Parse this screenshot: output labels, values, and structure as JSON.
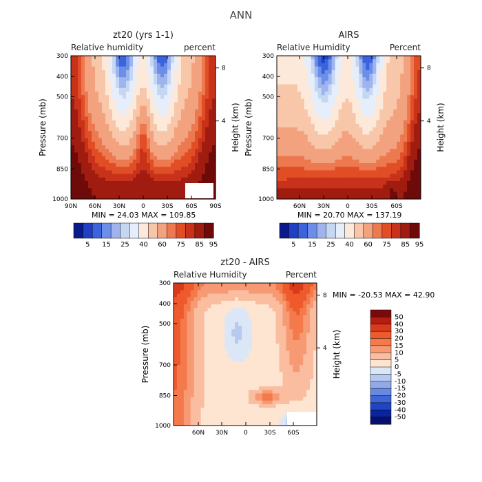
{
  "figure_title": "ANN",
  "chart_data": [
    {
      "type": "heatmap",
      "title": "zt20 (yrs 1-1)",
      "left_label": "Relative humidity",
      "right_label": "percent",
      "xlabel": "",
      "ylabel": "Pressure (mb)",
      "y2label": "Height (km)",
      "x_ticks": [
        "90N",
        "60N",
        "30N",
        "0",
        "30S",
        "60S",
        "90S"
      ],
      "y_ticks": [
        "300",
        "400",
        "500",
        "700",
        "850",
        "1000"
      ],
      "y2_ticks": [
        "8",
        "4"
      ],
      "min_label": "MIN =",
      "min_value": "24.03",
      "max_label": "MAX =",
      "max_value": "109.85",
      "colorbar": [
        "5",
        "15",
        "25",
        "40",
        "60",
        "75",
        "85",
        "95"
      ]
    },
    {
      "type": "heatmap",
      "title": "AIRS",
      "left_label": "Relative Humidity",
      "right_label": "Percent",
      "xlabel": "",
      "ylabel": "Pressure (mb)",
      "y2label": "Height (km)",
      "x_ticks": [
        "60N",
        "30N",
        "0",
        "30S",
        "60S"
      ],
      "y_ticks": [
        "300",
        "400",
        "500",
        "700",
        "850",
        "1000"
      ],
      "y2_ticks": [
        "8",
        "4"
      ],
      "min_label": "MIN =",
      "min_value": "20.70",
      "max_label": "MAX =",
      "max_value": "137.19",
      "colorbar": [
        "5",
        "15",
        "25",
        "40",
        "60",
        "75",
        "85",
        "95"
      ]
    },
    {
      "type": "heatmap",
      "title": "zt20 - AIRS",
      "left_label": "Relative Humidity",
      "right_label": "Percent",
      "xlabel": "",
      "ylabel": "Pressure (mb)",
      "y2label": "Height (km)",
      "x_ticks": [
        "60N",
        "30N",
        "0",
        "30S",
        "60S"
      ],
      "y_ticks": [
        "300",
        "400",
        "500",
        "700",
        "850",
        "1000"
      ],
      "y2_ticks": [
        "8",
        "4"
      ],
      "min_label": "MIN =",
      "min_value": "-20.53",
      "max_label": "MAX =",
      "max_value": "42.90",
      "colorbar": [
        "50",
        "40",
        "30",
        "20",
        "15",
        "10",
        "5",
        "0",
        "-5",
        "-10",
        "-15",
        "-20",
        "-30",
        "-40",
        "-50"
      ]
    }
  ],
  "palette": {
    "abs": [
      "#0a1a8c",
      "#1f3fc4",
      "#3a63dc",
      "#6d8ee8",
      "#9fb4ef",
      "#c6d7f4",
      "#e6eefb",
      "#fde9d9",
      "#f8c6a9",
      "#f3a27f",
      "#ec7950",
      "#e14e26",
      "#c8321a",
      "#a01c10",
      "#6e0a0a"
    ],
    "diff": [
      "#7a0a0a",
      "#b41e12",
      "#d93a1c",
      "#ee5a2c",
      "#f47a4c",
      "#f79a74",
      "#fabda0",
      "#fde5d2",
      "#dbe7f7",
      "#b6caf0",
      "#8fa9ea",
      "#6689e2",
      "#3f66d8",
      "#1f45c4",
      "#0a24a0",
      "#051070"
    ]
  }
}
